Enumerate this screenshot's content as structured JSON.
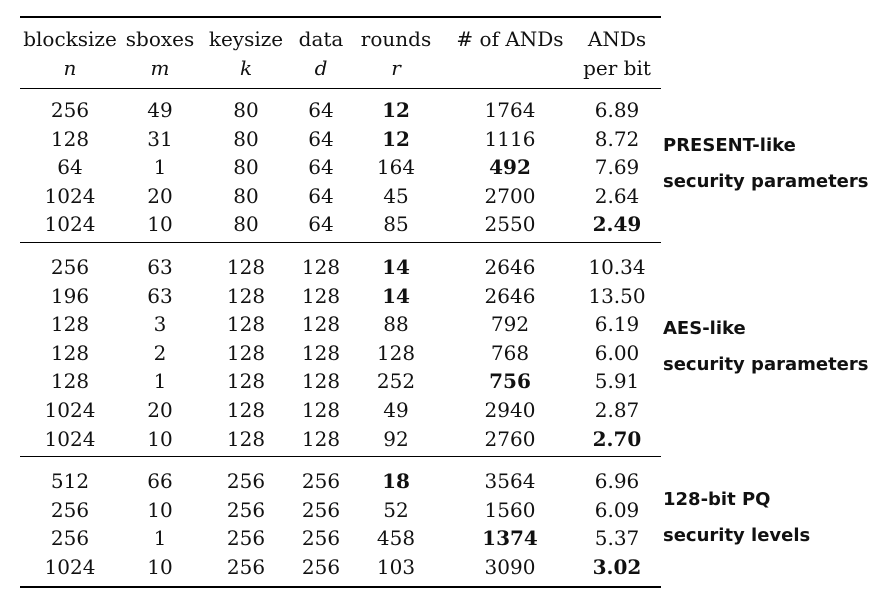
{
  "table": {
    "columns": [
      {
        "label": "blocksize",
        "var": "n"
      },
      {
        "label": "sboxes",
        "var": "m"
      },
      {
        "label": "keysize",
        "var": "k"
      },
      {
        "label": "data",
        "var": "d"
      },
      {
        "label": "rounds",
        "var": "r"
      },
      {
        "label": "# of ANDs",
        "var": ""
      },
      {
        "label": "ANDs",
        "var": "per bit"
      }
    ],
    "groups": [
      {
        "note": [
          "PRESENT-like",
          "security parameters"
        ],
        "rows": [
          {
            "cells": [
              "256",
              "49",
              "80",
              "64",
              "12",
              "1764",
              "6.89"
            ],
            "bold": [
              4
            ]
          },
          {
            "cells": [
              "128",
              "31",
              "80",
              "64",
              "12",
              "1116",
              "8.72"
            ],
            "bold": [
              4
            ]
          },
          {
            "cells": [
              "64",
              "1",
              "80",
              "64",
              "164",
              "492",
              "7.69"
            ],
            "bold": [
              5
            ]
          },
          {
            "cells": [
              "1024",
              "20",
              "80",
              "64",
              "45",
              "2700",
              "2.64"
            ],
            "bold": []
          },
          {
            "cells": [
              "1024",
              "10",
              "80",
              "64",
              "85",
              "2550",
              "2.49"
            ],
            "bold": [
              6
            ]
          }
        ]
      },
      {
        "note": [
          "AES-like",
          "security parameters"
        ],
        "rows": [
          {
            "cells": [
              "256",
              "63",
              "128",
              "128",
              "14",
              "2646",
              "10.34"
            ],
            "bold": [
              4
            ]
          },
          {
            "cells": [
              "196",
              "63",
              "128",
              "128",
              "14",
              "2646",
              "13.50"
            ],
            "bold": [
              4
            ]
          },
          {
            "cells": [
              "128",
              "3",
              "128",
              "128",
              "88",
              "792",
              "6.19"
            ],
            "bold": []
          },
          {
            "cells": [
              "128",
              "2",
              "128",
              "128",
              "128",
              "768",
              "6.00"
            ],
            "bold": []
          },
          {
            "cells": [
              "128",
              "1",
              "128",
              "128",
              "252",
              "756",
              "5.91"
            ],
            "bold": [
              5
            ]
          },
          {
            "cells": [
              "1024",
              "20",
              "128",
              "128",
              "49",
              "2940",
              "2.87"
            ],
            "bold": []
          },
          {
            "cells": [
              "1024",
              "10",
              "128",
              "128",
              "92",
              "2760",
              "2.70"
            ],
            "bold": [
              6
            ]
          }
        ]
      },
      {
        "note": [
          "128-bit PQ",
          "security levels"
        ],
        "rows": [
          {
            "cells": [
              "512",
              "66",
              "256",
              "256",
              "18",
              "3564",
              "6.96"
            ],
            "bold": [
              4
            ]
          },
          {
            "cells": [
              "256",
              "10",
              "256",
              "256",
              "52",
              "1560",
              "6.09"
            ],
            "bold": []
          },
          {
            "cells": [
              "256",
              "1",
              "256",
              "256",
              "458",
              "1374",
              "5.37"
            ],
            "bold": [
              5
            ]
          },
          {
            "cells": [
              "1024",
              "10",
              "256",
              "256",
              "103",
              "3090",
              "3.02"
            ],
            "bold": [
              6
            ]
          }
        ]
      }
    ]
  }
}
